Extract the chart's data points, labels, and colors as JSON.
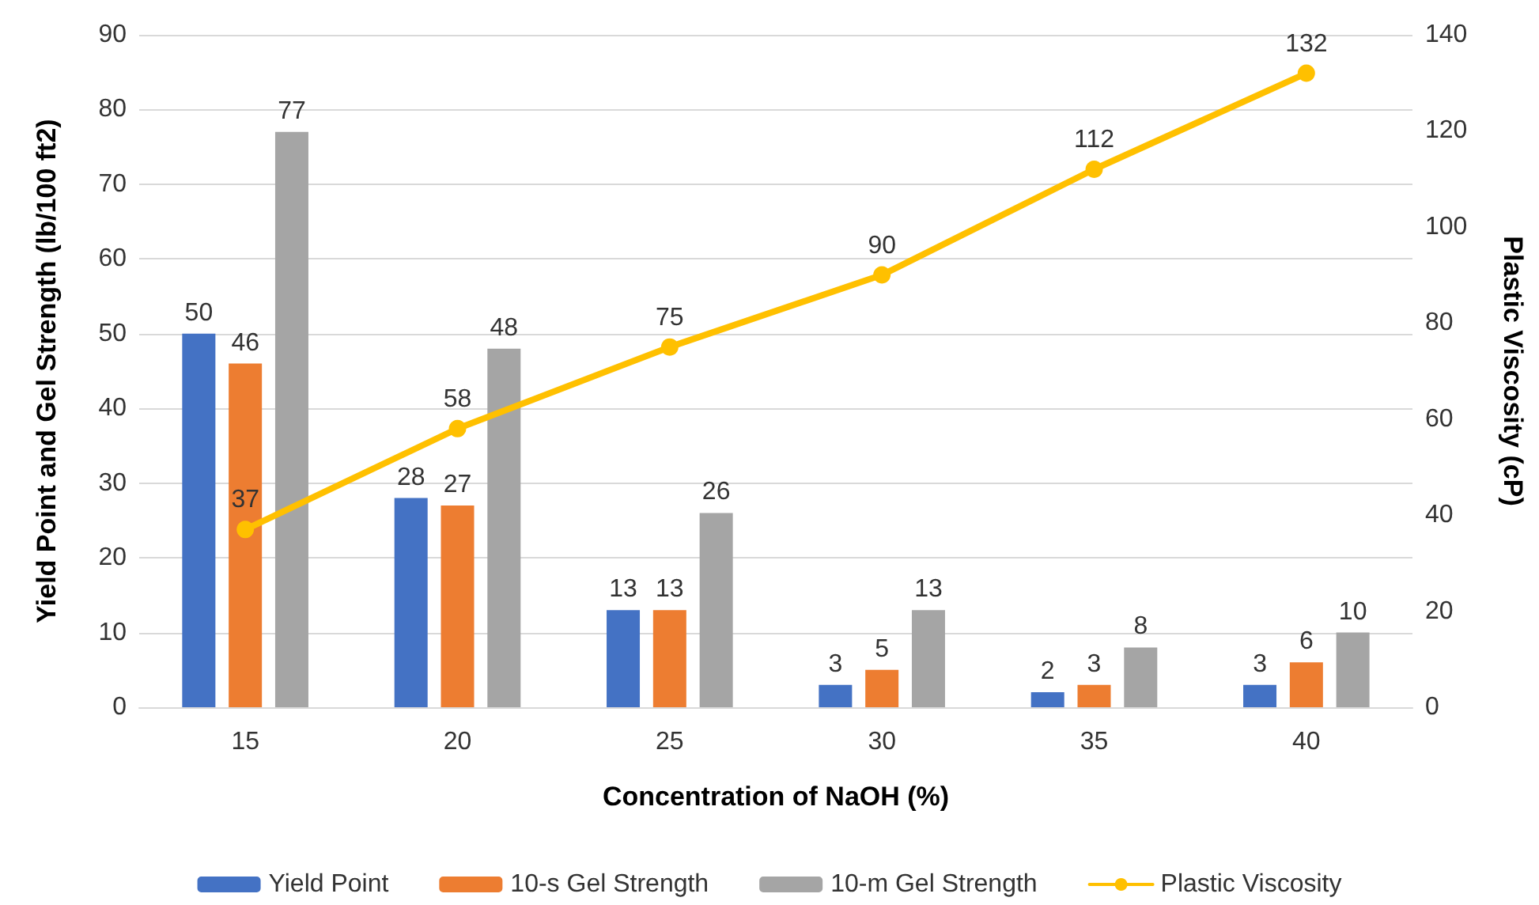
{
  "chart_data": {
    "type": "bar",
    "xlabel": "Concentration of NaOH (%)",
    "ylabel": "Yield Point and Gel Strength (lb/100 ft2)",
    "y2label": "Plastic Viscosity (cP)",
    "categories": [
      "15",
      "20",
      "25",
      "30",
      "35",
      "40"
    ],
    "series": [
      {
        "name": "Yield Point",
        "color": "#4472c4",
        "values": [
          50,
          28,
          13,
          3,
          2,
          3
        ]
      },
      {
        "name": "10-s Gel Strength",
        "color": "#ed7d31",
        "values": [
          46,
          27,
          13,
          5,
          3,
          6
        ]
      },
      {
        "name": "10-m Gel Strength",
        "color": "#a5a5a5",
        "values": [
          77,
          48,
          26,
          13,
          8,
          10
        ]
      },
      {
        "name": "Plastic Viscosity",
        "type": "line",
        "axis": "y2",
        "color": "#ffc000",
        "values": [
          37,
          58,
          75,
          90,
          112,
          132
        ],
        "marker": "circle",
        "line_style": "solid"
      }
    ],
    "ylim": [
      0,
      90
    ],
    "yticks": [
      0,
      10,
      20,
      30,
      40,
      50,
      60,
      70,
      80,
      90
    ],
    "y2lim": [
      0,
      140
    ],
    "y2ticks": [
      0,
      20,
      40,
      60,
      80,
      100,
      120,
      140
    ],
    "data_labels": true,
    "grid": "y",
    "legend": "bottom"
  }
}
